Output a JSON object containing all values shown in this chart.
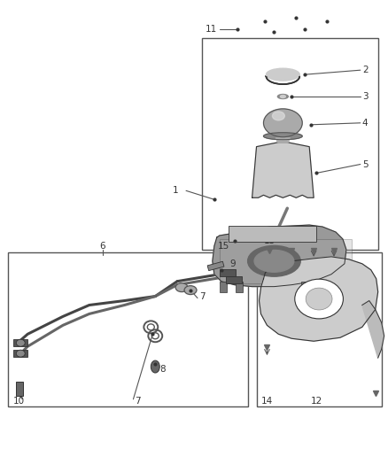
{
  "bg_color": "#ffffff",
  "fig_width": 4.38,
  "fig_height": 5.33,
  "dpi": 100,
  "line_color": "#555555",
  "part_color": "#888888",
  "dark_color": "#333333"
}
